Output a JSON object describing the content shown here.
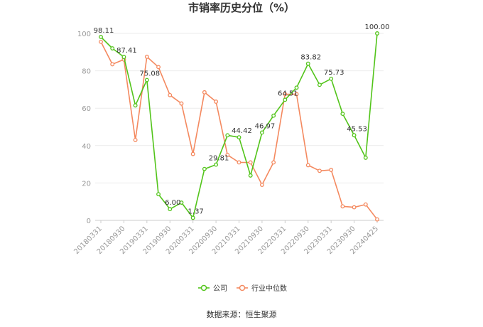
{
  "chart_data": {
    "type": "line",
    "title": "市销率历史分位（%）",
    "ylim": [
      0,
      100
    ],
    "yticks": [
      0,
      20,
      40,
      60,
      80,
      100
    ],
    "x_tick_labels": [
      "20180331",
      "20180930",
      "20190331",
      "20190930",
      "20200331",
      "20200930",
      "20210331",
      "20210930",
      "20220331",
      "20220930",
      "20230331",
      "20230930",
      "20240425"
    ],
    "series": [
      {
        "name": "公司",
        "color": "#52c41a",
        "values": [
          98.11,
          92.0,
          87.41,
          61.5,
          75.08,
          14.0,
          6.0,
          9.5,
          1.37,
          27.5,
          29.81,
          45.5,
          44.42,
          24.0,
          46.97,
          56.0,
          64.51,
          71.0,
          83.82,
          72.5,
          75.73,
          57.0,
          45.53,
          33.5,
          100.0
        ],
        "labels": [
          "98.11",
          "",
          "87.41",
          "",
          "75.08",
          "",
          "6.00",
          "",
          "1.37",
          "",
          "29.81",
          "",
          "44.42",
          "",
          "46.97",
          "",
          "64.51",
          "",
          "83.82",
          "",
          "75.73",
          "",
          "45.53",
          "",
          "100.00"
        ]
      },
      {
        "name": "行业中位数",
        "color": "#f4895f",
        "values": [
          95.5,
          83.5,
          86.0,
          43.0,
          87.5,
          82.0,
          67.0,
          62.5,
          35.5,
          68.5,
          63.5,
          35.0,
          31.0,
          31.0,
          19.0,
          31.0,
          67.5,
          67.5,
          29.5,
          26.5,
          27.0,
          7.5,
          7.0,
          8.5,
          0.5
        ]
      }
    ],
    "legend_position": "bottom-center",
    "grid": "horizontal"
  },
  "source_text": "数据来源：恒生聚源"
}
